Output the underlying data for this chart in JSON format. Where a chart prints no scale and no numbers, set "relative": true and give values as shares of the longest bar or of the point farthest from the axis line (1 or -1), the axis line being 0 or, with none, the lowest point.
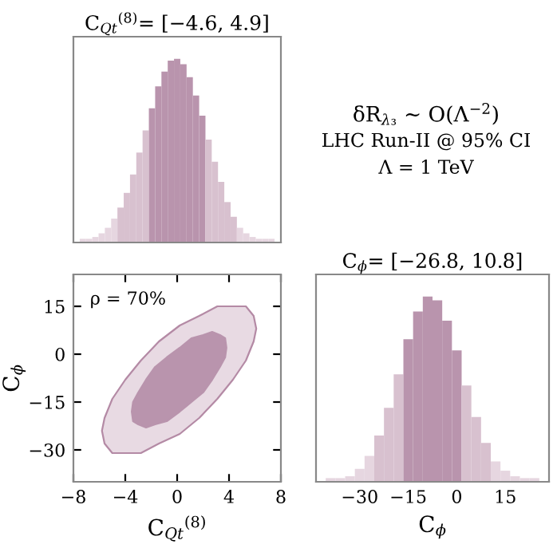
{
  "chart_data": [
    {
      "type": "bar",
      "title": "C$_{Qt}$$^{(8)}$= [−4.6, 4.9]",
      "relative": true,
      "tick_labels": false,
      "annotations": [
        "δR$_{λ₃}$ ∼ O(Λ$^{−2}$)",
        "LHC Run-II @ 95% CI",
        "Λ = 1 TeV"
      ],
      "categories": [
        null,
        null,
        null,
        null,
        null,
        null,
        null,
        null,
        null,
        null,
        null,
        null,
        null,
        null,
        null,
        null,
        null,
        null,
        null,
        null,
        null,
        null,
        null,
        null,
        null,
        null,
        null,
        null,
        null,
        null,
        null
      ],
      "values": [
        0.02,
        0.02,
        0.03,
        0.05,
        0.08,
        0.13,
        0.19,
        0.27,
        0.37,
        0.49,
        0.61,
        0.73,
        0.85,
        0.93,
        0.99,
        1,
        0.97,
        0.9,
        0.8,
        0.69,
        0.56,
        0.44,
        0.33,
        0.22,
        0.14,
        0.08,
        0.05,
        0.03,
        0.02,
        0.02,
        0.02
      ],
      "colors": [
        "#e6d6e0",
        "#e6d6e0",
        "#e6d6e0",
        "#e6d6e0",
        "#e6d6e0",
        "#e6d6e0",
        "#d8c1cf",
        "#d8c1cf",
        "#d8c1cf",
        "#d8c1cf",
        "#d8c1cf",
        "#b994ad",
        "#b994ad",
        "#b994ad",
        "#b994ad",
        "#b994ad",
        "#b994ad",
        "#b994ad",
        "#b994ad",
        "#b994ad",
        "#d8c1cf",
        "#d8c1cf",
        "#d8c1cf",
        "#d8c1cf",
        "#d8c1cf",
        "#e6d6e0",
        "#e6d6e0",
        "#e6d6e0",
        "#e6d6e0",
        "#e6d6e0",
        "#e6d6e0"
      ]
    },
    {
      "type": "area",
      "xlabel": "C$_{Qt}$$^{(8)}$",
      "ylabel": "C$_{ϕ}$",
      "xlim": [
        -8,
        8
      ],
      "xticks": [
        -8,
        -4,
        0,
        4,
        8
      ],
      "ylim": [
        -40,
        25
      ],
      "yticks": [
        -30,
        -15,
        0,
        15
      ],
      "annotations": [
        "ρ = 70%"
      ],
      "series": [
        {
          "color": "#e8dae3",
          "x": [
            6.1,
            5.9,
            5.3,
            4.3,
            3.1,
            1.7,
            0.2,
            -1.4,
            -2.8,
            -4.0,
            -5.0,
            -5.6,
            -5.8,
            -5.6,
            -5.0,
            -4.0,
            -2.8,
            -1.4,
            0.2,
            1.7,
            3.1,
            4.3,
            5.3,
            5.9
          ],
          "values": [
            8,
            12,
            15,
            15,
            15,
            12,
            9,
            4,
            -2,
            -8,
            -14,
            -20,
            -24,
            -28,
            -31,
            -31,
            -31,
            -28,
            -25,
            -20,
            -14,
            -8,
            -2,
            4
          ]
        },
        {
          "color": "#b994ad",
          "x": [
            3.8,
            3.7,
            3.3,
            2.7,
            2.0,
            1.1,
            0.2,
            -0.8,
            -1.7,
            -2.4,
            -3.0,
            -3.4,
            -3.5,
            -3.4,
            -3.0,
            -2.4,
            -1.7,
            -0.8,
            0.2,
            1.1,
            2.0,
            2.7,
            3.3,
            3.7
          ],
          "values": [
            2,
            5,
            6,
            7,
            6,
            5,
            2,
            -1,
            -4,
            -8,
            -12,
            -15,
            -18,
            -21,
            -22,
            -23,
            -22,
            -21,
            -18,
            -15,
            -12,
            -8,
            -4,
            -1
          ]
        }
      ]
    },
    {
      "type": "bar",
      "title": "C$_{ϕ}$= [−26.8, 10.8]",
      "xlabel": "C$_{ϕ}$",
      "relative": true,
      "tick_labels": "x",
      "categories": [
        null,
        null,
        null,
        "−30",
        null,
        null,
        null,
        null,
        "−15",
        null,
        null,
        null,
        null,
        "0",
        null,
        null,
        null,
        null,
        "15",
        null,
        null,
        null
      ],
      "values": [
        0.02,
        0.02,
        0.03,
        0.07,
        0.14,
        0.25,
        0.4,
        0.58,
        0.77,
        0.92,
        1,
        0.98,
        0.87,
        0.71,
        0.52,
        0.35,
        0.21,
        0.11,
        0.06,
        0.03,
        0.02,
        0.02
      ],
      "colors": [
        "#e6d6e0",
        "#e6d6e0",
        "#e6d6e0",
        "#e6d6e0",
        "#e6d6e0",
        "#d8c1cf",
        "#d8c1cf",
        "#d8c1cf",
        "#b994ad",
        "#b994ad",
        "#b994ad",
        "#b994ad",
        "#b994ad",
        "#b994ad",
        "#d8c1cf",
        "#d8c1cf",
        "#d8c1cf",
        "#e6d6e0",
        "#e6d6e0",
        "#e6d6e0",
        "#e6d6e0",
        "#e6d6e0"
      ]
    }
  ]
}
